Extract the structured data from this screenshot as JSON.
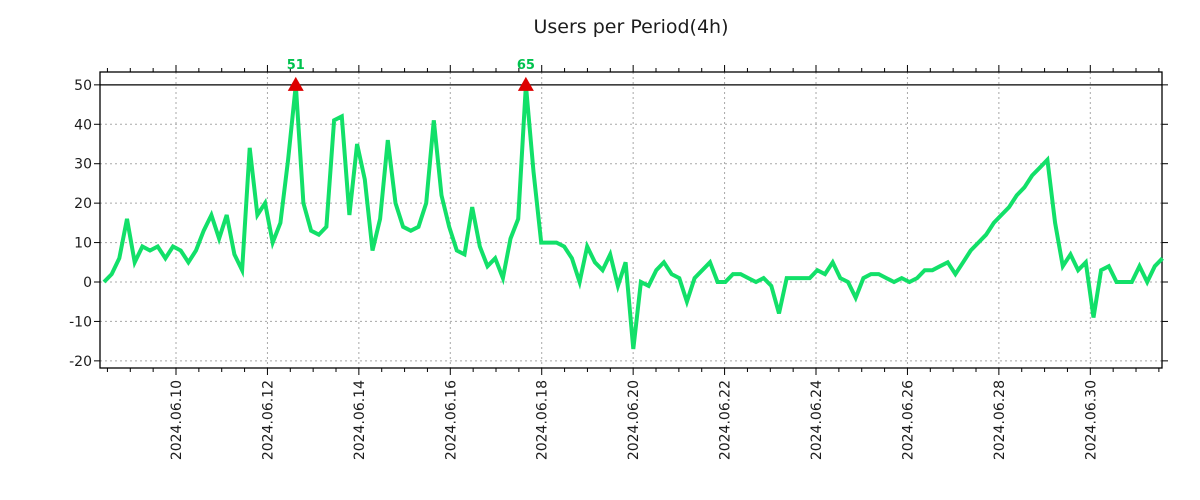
{
  "title": "Users per Period(4h)",
  "chart_data": {
    "type": "line",
    "title": "Users per Period(4h)",
    "series_name": "users-per-4h",
    "interval_hours": 4,
    "x_start_estimate": "2024.06.08 ~10:00",
    "values": [
      0,
      2,
      6,
      16,
      5,
      9,
      8,
      9,
      6,
      9,
      8,
      5,
      8,
      13,
      17,
      11,
      17,
      7,
      3,
      34,
      17,
      20,
      10,
      15,
      31,
      51,
      20,
      13,
      12,
      14,
      41,
      42,
      17,
      35,
      26,
      8,
      16,
      36,
      20,
      14,
      13,
      14,
      20,
      41,
      22,
      14,
      8,
      7,
      19,
      9,
      4,
      6,
      1,
      11,
      16,
      65,
      28,
      10,
      10,
      10,
      9,
      6,
      0,
      9,
      5,
      3,
      7,
      -1,
      5,
      -17,
      0,
      -1,
      3,
      5,
      2,
      1,
      -5,
      1,
      3,
      5,
      0,
      0,
      2,
      2,
      1,
      0,
      1,
      -1,
      -8,
      1,
      1,
      1,
      1,
      3,
      2,
      5,
      1,
      0,
      -4,
      1,
      2,
      2,
      1,
      0,
      1,
      0,
      1,
      3,
      3,
      4,
      5,
      2,
      5,
      8,
      10,
      12,
      15,
      17,
      19,
      22,
      24,
      27,
      29,
      31,
      15,
      4,
      7,
      3,
      5,
      -9,
      3,
      4,
      0,
      0,
      0,
      4,
      0,
      4,
      6
    ],
    "clip_max": 50,
    "peak_annotations": [
      {
        "value_index": 25,
        "label": "51",
        "value": 51
      },
      {
        "value_index": 55,
        "label": "65",
        "value": 65
      }
    ],
    "yticks": [
      -20,
      -10,
      0,
      10,
      20,
      30,
      40,
      50
    ],
    "ylim": [
      -21.8,
      53.3
    ],
    "xtick_labels": [
      "2024.06.10",
      "2024.06.12",
      "2024.06.14",
      "2024.06.16",
      "2024.06.18",
      "2024.06.20",
      "2024.06.22",
      "2024.06.24",
      "2024.06.26",
      "2024.06.28",
      "2024.06.30"
    ],
    "grid": true,
    "legend": "none",
    "line_color": "#12e069",
    "marker_color": "#dd0000",
    "annotation_color": "#00c24e",
    "grid_color": "#a8a8a8",
    "frame_color": "#000000",
    "cap_line_color": "#000000",
    "text_color": "#1c1c1c"
  }
}
